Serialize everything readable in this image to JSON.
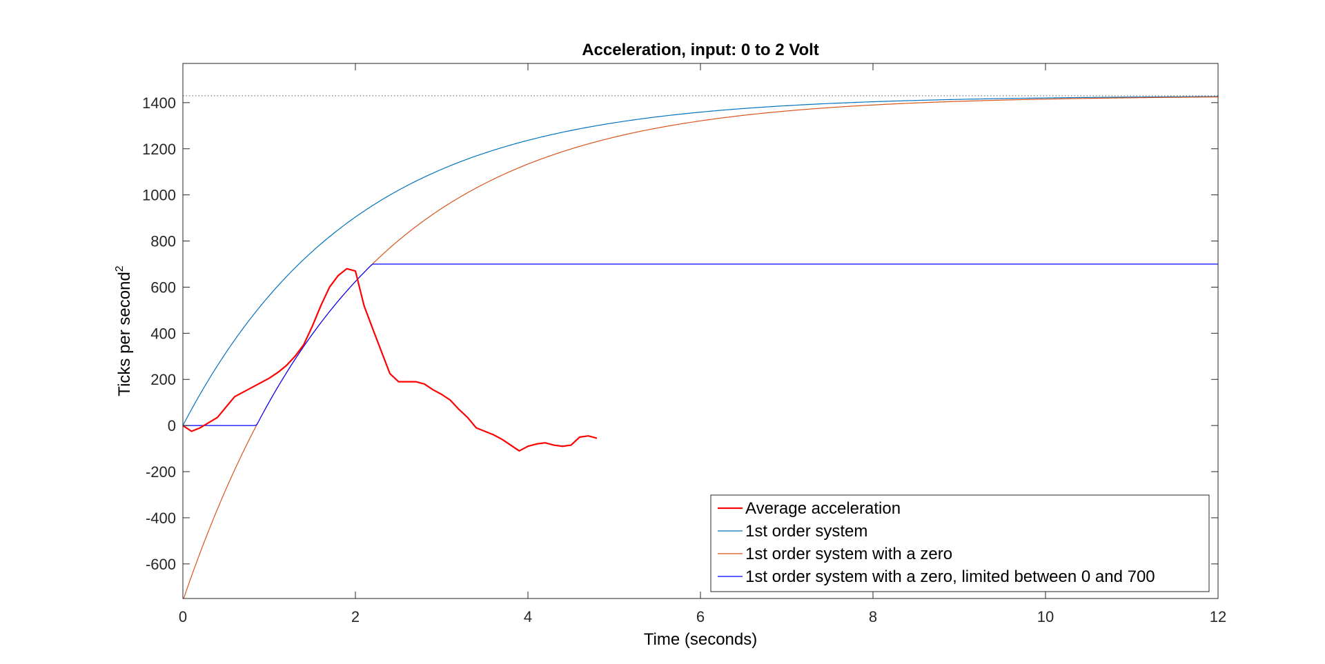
{
  "chart_data": {
    "type": "line",
    "title": "Acceleration, input: 0 to 2 Volt",
    "xlabel": "Time (seconds)",
    "ylabel": "Ticks per second",
    "ylabel_superscript": "2",
    "xlim": [
      0,
      12
    ],
    "ylim": [
      -750,
      1570
    ],
    "xticks": [
      0,
      2,
      4,
      6,
      8,
      10,
      12
    ],
    "yticks": [
      -600,
      -400,
      -200,
      0,
      200,
      400,
      600,
      800,
      1000,
      1200,
      1400
    ],
    "grid": false,
    "legend_position": "bottom-right",
    "reference_line": {
      "y": 1430,
      "style": "dotted",
      "color": "#555555"
    },
    "series": [
      {
        "name": "Average acceleration",
        "color": "#ff0000",
        "kind": "measured",
        "x": [
          0,
          0.1,
          0.2,
          0.4,
          0.6,
          0.8,
          1.0,
          1.1,
          1.2,
          1.3,
          1.4,
          1.5,
          1.6,
          1.7,
          1.8,
          1.9,
          2.0,
          2.1,
          2.2,
          2.4,
          2.5,
          2.6,
          2.7,
          2.8,
          2.9,
          3.0,
          3.1,
          3.2,
          3.3,
          3.4,
          3.6,
          3.7,
          3.8,
          3.9,
          4.0,
          4.1,
          4.2,
          4.3,
          4.4,
          4.5,
          4.6,
          4.7,
          4.8
        ],
        "y": [
          0,
          -25,
          -10,
          35,
          125,
          165,
          205,
          230,
          260,
          300,
          350,
          430,
          520,
          600,
          650,
          680,
          670,
          520,
          420,
          225,
          190,
          190,
          190,
          180,
          155,
          135,
          110,
          70,
          35,
          -10,
          -40,
          -60,
          -85,
          -110,
          -90,
          -80,
          -75,
          -85,
          -90,
          -85,
          -50,
          -45,
          -55
        ]
      },
      {
        "name": "1st order system",
        "color": "#0072bd",
        "kind": "first_order",
        "K": 1430,
        "tau": 2.0
      },
      {
        "name": "1st order system with a zero",
        "color": "#d95319",
        "kind": "first_order_zero",
        "K": 1430,
        "y0": -760,
        "tau": 2.0
      },
      {
        "name": "1st order system with a zero, limited between 0 and 700",
        "color": "#0000ff",
        "kind": "first_order_zero_limited",
        "K": 1430,
        "y0": -760,
        "tau": 2.0,
        "lower": 0,
        "upper": 700
      }
    ]
  }
}
